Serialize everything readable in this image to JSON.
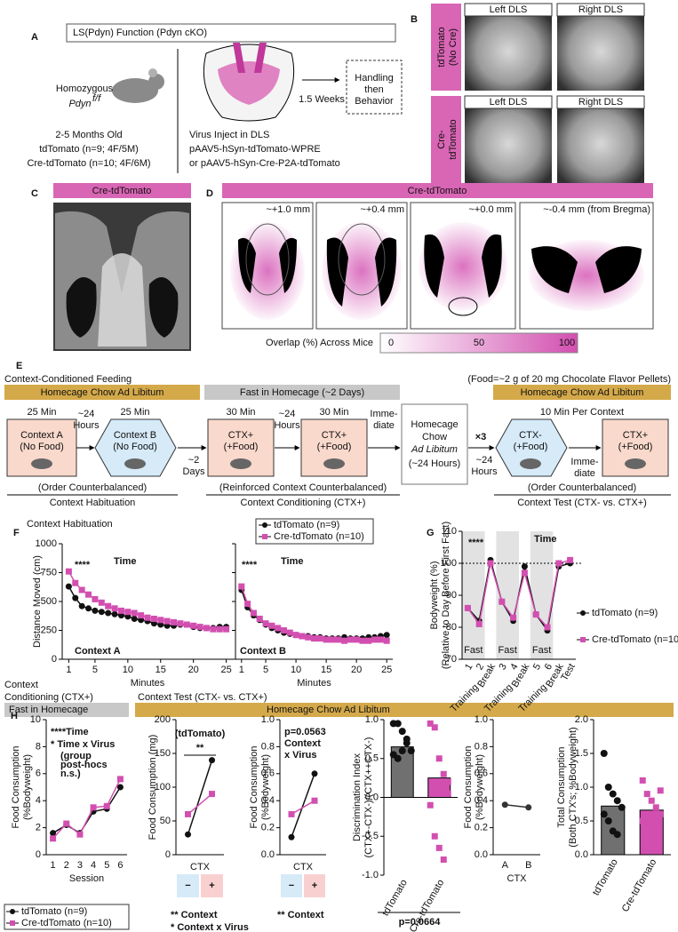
{
  "panels": {
    "a": {
      "letter": "A",
      "title": "LS(Pdyn) Function (Pdyn cKO)",
      "strain": [
        "Homozygous",
        "Pdyn",
        "f/f"
      ],
      "age": "2-5 Months Old",
      "groups": [
        "tdTomato (n=9; 4F/5M)",
        "Cre-tdTomato (n=10; 4F/6M)"
      ],
      "delay": "1.5 Weeks",
      "next": [
        "Handling",
        "then",
        "Behavior"
      ],
      "virus": [
        "Virus Inject in DLS",
        "pAAV5-hSyn-tdTomato-WPRE",
        "or pAAV5-hSyn-Cre-P2A-tdTomato"
      ]
    },
    "b": {
      "letter": "B",
      "rows": [
        [
          "tdTomato",
          "(No Cre)"
        ],
        [
          "Cre-",
          "tdTomato"
        ]
      ],
      "cols": [
        "Left DLS",
        "Right DLS",
        "Left DLS",
        "Right DLS"
      ]
    },
    "c": {
      "letter": "C",
      "label": "Cre-tdTomato"
    },
    "d": {
      "letter": "D",
      "label": "Cre-tdTomato",
      "levels": [
        "~+1.0 mm",
        "~+0.4 mm",
        "~+0.0 mm",
        "~-0.4 mm (from Bregma)"
      ],
      "scale_title": "Overlap (%) Across Mice",
      "scale_ticks": [
        0,
        50,
        100
      ]
    },
    "e": {
      "letter": "E",
      "title": "Context-Conditioned Feeding",
      "food": "(Food=~2 g of 20 mg Chocolate Flavor Pellets)",
      "headers": [
        "Homecage Chow Ad Libitum",
        "Fast in Homecage (~2 Days)",
        "Homecage Chow Ad Libitum"
      ],
      "durations": [
        "25 Min",
        "25 Min",
        "30 Min",
        "30 Min",
        "10 Min Per Context"
      ],
      "contexts": [
        [
          "Context A",
          "(No Food)"
        ],
        [
          "Context B",
          "(No Food)"
        ],
        [
          "CTX+",
          "(+Food)"
        ],
        [
          "CTX+",
          "(+Food)"
        ],
        [
          "CTX-",
          "(+Food)"
        ],
        [
          "CTX+",
          "(+Food)"
        ]
      ],
      "intervals": [
        [
          "~24",
          "Hours"
        ],
        [
          "~2",
          "Days"
        ],
        [
          "~24",
          "Hours"
        ],
        [
          "Imme-",
          "diate"
        ],
        [
          "~24",
          "Hours"
        ],
        [
          "Imme-",
          "diate"
        ]
      ],
      "homecage": [
        "Homecage",
        "Chow",
        "Ad Libitum",
        "(~24 Hours)"
      ],
      "repeat": "×3",
      "notes": [
        "(Order Counterbalanced)",
        "(Reinforced Context Counterbalanced)",
        "(Order Counterbalanced)"
      ],
      "phases": [
        "Context Habituation",
        "Context Conditioning (CTX+)",
        "Context Test (CTX- vs. CTX+)"
      ]
    },
    "f": {
      "letter": "F",
      "title": "Context Habituation"
    },
    "g": {
      "letter": "G"
    },
    "h": {
      "letter": "H",
      "cond_title": [
        "Context",
        "Conditioning (CTX+)"
      ],
      "test_title": "Context Test (CTX- vs. CTX+)",
      "fast": "Fast in Homecage",
      "adlib": "Homecage Chow Ad Libitum"
    }
  },
  "chart_data": [
    {
      "type": "line",
      "x": [
        1,
        2,
        3,
        4,
        5,
        6,
        7,
        8,
        9,
        10,
        11,
        12,
        13,
        14,
        15,
        16,
        17,
        18,
        19,
        20,
        21,
        22,
        23,
        24,
        25
      ],
      "xlim": [
        0,
        26
      ],
      "xticks": [
        1,
        5,
        10,
        15,
        20,
        25
      ],
      "xlabel": "Minutes",
      "ylim": [
        0,
        1000
      ],
      "yticks": [
        0,
        250,
        500,
        750,
        1000
      ],
      "ylabel": [
        "Distance Moved (cm)"
      ],
      "annotations": [
        "****",
        "Time",
        "Context A"
      ],
      "series": [
        {
          "name": "tdTomato (n=9)",
          "color": "#111111",
          "marker": "circle",
          "values": [
            630,
            530,
            460,
            440,
            420,
            410,
            400,
            390,
            380,
            370,
            350,
            340,
            330,
            310,
            300,
            290,
            290,
            300,
            300,
            280,
            270,
            270,
            270,
            280,
            280
          ]
        },
        {
          "name": "Cre-tdTomato (n=10)",
          "color": "#d24fb0",
          "marker": "square",
          "values": [
            760,
            660,
            600,
            560,
            520,
            490,
            460,
            440,
            420,
            410,
            400,
            380,
            360,
            350,
            340,
            330,
            320,
            310,
            300,
            290,
            280,
            270,
            260,
            260,
            260
          ]
        }
      ]
    },
    {
      "type": "line",
      "x": [
        1,
        2,
        3,
        4,
        5,
        6,
        7,
        8,
        9,
        10,
        11,
        12,
        13,
        14,
        15,
        16,
        17,
        18,
        19,
        20,
        21,
        22,
        23,
        24,
        25
      ],
      "xlim": [
        0,
        26
      ],
      "xticks": [
        1,
        5,
        10,
        15,
        20,
        25
      ],
      "xlabel": "Minutes",
      "ylim": [
        0,
        1000
      ],
      "yticks": [
        0,
        250,
        500,
        750,
        1000
      ],
      "annotations": [
        "****",
        "Time",
        "Context B"
      ],
      "series": [
        {
          "color": "#111111",
          "marker": "circle",
          "values": [
            600,
            450,
            380,
            340,
            300,
            270,
            250,
            230,
            220,
            210,
            200,
            200,
            190,
            190,
            180,
            180,
            180,
            190,
            180,
            180,
            180,
            190,
            190,
            200,
            210
          ]
        },
        {
          "color": "#d24fb0",
          "marker": "square",
          "values": [
            630,
            480,
            400,
            350,
            310,
            290,
            270,
            250,
            230,
            210,
            200,
            190,
            180,
            180,
            170,
            170,
            170,
            160,
            170,
            170,
            160,
            160,
            170,
            170,
            160
          ]
        }
      ]
    },
    {
      "type": "line",
      "categories": [
        "1",
        "2",
        "Break",
        "3",
        "4",
        "Break",
        "5",
        "6",
        "Break",
        "Test"
      ],
      "ylim": [
        70,
        110
      ],
      "yticks": [
        70,
        80,
        90,
        100,
        110
      ],
      "ylabel": [
        "Bodyweight (%)",
        "(Relative to Day Before First Fast)"
      ],
      "annotations": [
        "****",
        "Time"
      ],
      "reference_line": 100,
      "band_labels": [
        "Fast",
        "Fast",
        "Fast"
      ],
      "group_labels": [
        "Training",
        "Training",
        "Training"
      ],
      "series": [
        {
          "name": "tdTomato (n=9)",
          "color": "#111111",
          "marker": "circle",
          "values": [
            86,
            82,
            101,
            88,
            82,
            99,
            84,
            79,
            99,
            100
          ]
        },
        {
          "name": "Cre-tdTomato (n=10)",
          "color": "#d24fb0",
          "marker": "square",
          "values": [
            86,
            81,
            100,
            88,
            83,
            97,
            84,
            80,
            100,
            101
          ]
        }
      ]
    },
    {
      "type": "line",
      "categories": [
        "1",
        "2",
        "3",
        "4",
        "5",
        "6"
      ],
      "xlabel": "Session",
      "ylim": [
        0,
        10
      ],
      "yticks": [
        0,
        2,
        4,
        6,
        8,
        10
      ],
      "ylabel": [
        "Food Consumption",
        "(%Bodyweight)"
      ],
      "annotations": [
        "****Time",
        "* Time x Virus",
        "(group",
        "post-hocs",
        "n.s.)"
      ],
      "series": [
        {
          "name": "tdTomato (n=9)",
          "color": "#111111",
          "marker": "circle",
          "values": [
            1.6,
            2.2,
            1.6,
            3.2,
            3.4,
            5.0
          ]
        },
        {
          "name": "Cre-tdTomato (n=10)",
          "color": "#d24fb0",
          "marker": "square",
          "values": [
            1.2,
            2.3,
            1.5,
            3.5,
            3.6,
            5.6
          ]
        }
      ]
    },
    {
      "type": "line",
      "categories": [
        "−",
        "+"
      ],
      "xlabel": "CTX",
      "ylim": [
        0,
        200
      ],
      "yticks": [
        0,
        50,
        100,
        150,
        200
      ],
      "ylabel": [
        "Food Consumption (mg)"
      ],
      "annotations": [
        "(tdTomato)",
        "**",
        "** Context",
        "* Context x Virus"
      ],
      "series": [
        {
          "color": "#111111",
          "marker": "circle",
          "values": [
            30,
            140
          ]
        },
        {
          "color": "#d24fb0",
          "marker": "square",
          "values": [
            60,
            90
          ]
        }
      ]
    },
    {
      "type": "line",
      "categories": [
        "−",
        "+"
      ],
      "xlabel": "CTX",
      "ylim": [
        0,
        1
      ],
      "yticks": [
        {
          "value": 0,
          "label": "0.0"
        },
        0.2,
        0.4,
        0.6,
        0.8,
        {
          "value": 1,
          "label": "1.0"
        }
      ],
      "ylabel": [
        "Food Consumption",
        "(%Bodyweight)"
      ],
      "annotations": [
        "p=0.0563",
        "Context",
        "x Virus",
        "** Context"
      ],
      "series": [
        {
          "color": "#111111",
          "marker": "circle",
          "values": [
            0.13,
            0.6
          ]
        },
        {
          "color": "#d24fb0",
          "marker": "square",
          "values": [
            0.3,
            0.4
          ]
        }
      ]
    },
    {
      "type": "bar",
      "categories": [
        "tdTomato",
        "Cre-tdTomato"
      ],
      "values": [
        0.65,
        0.25
      ],
      "colors": [
        "#707070",
        "#d24fb0"
      ],
      "point_colors": [
        "#111111",
        "#d24fb0"
      ],
      "points": [
        [
          0.95,
          0.95,
          0.85,
          0.7,
          0.6,
          0.55,
          0.5,
          0.6,
          0.75
        ],
        [
          0.95,
          0.9,
          0.5,
          0.3,
          0.05,
          -0.1,
          -0.5,
          -0.65,
          -0.8,
          0.2
        ]
      ],
      "ylim": [
        -1,
        1
      ],
      "yticks": [
        {
          "value": -1,
          "label": "-1.0"
        },
        -0.5,
        {
          "value": 0,
          "label": "0.0"
        },
        0.5,
        {
          "value": 1,
          "label": "1.0"
        }
      ],
      "ylabel": [
        "Discrimination Index",
        "(CTX+-CTX-)/(CTX++CTX-)"
      ],
      "annotations": [
        "p=0.0664"
      ]
    },
    {
      "type": "line",
      "categories": [
        "A",
        "B"
      ],
      "xlabel": "CTX",
      "ylim": [
        0,
        1
      ],
      "yticks": [
        {
          "value": 0,
          "label": "0.0"
        },
        0.2,
        0.4,
        0.6,
        0.8,
        {
          "value": 1,
          "label": "1.0"
        }
      ],
      "ylabel": [
        "Food Consumption",
        "(%Bodyweight)"
      ],
      "series": [
        {
          "color": "#333333",
          "marker": "circle",
          "values": [
            0.37,
            0.35
          ]
        }
      ]
    },
    {
      "type": "bar",
      "categories": [
        "tdTomato",
        "Cre-tdTomato"
      ],
      "values": [
        0.72,
        0.66
      ],
      "colors": [
        "#707070",
        "#d24fb0"
      ],
      "point_colors": [
        "#111111",
        "#d24fb0"
      ],
      "points": [
        [
          1.5,
          1.0,
          0.9,
          0.8,
          0.7,
          0.6,
          0.5,
          0.35,
          0.3
        ],
        [
          1.1,
          0.9,
          0.8,
          0.7,
          0.6,
          0.5,
          0.45,
          0.4,
          0.3,
          0.95
        ]
      ],
      "ylim": [
        0,
        2
      ],
      "yticks": [
        {
          "value": 0,
          "label": "0.0"
        },
        0.5,
        {
          "value": 1,
          "label": "1.0"
        },
        1.5,
        {
          "value": 2,
          "label": "2.0"
        }
      ],
      "ylabel": [
        "Total Consumption",
        "(Both CTX's; %Bodyweight)"
      ]
    }
  ]
}
